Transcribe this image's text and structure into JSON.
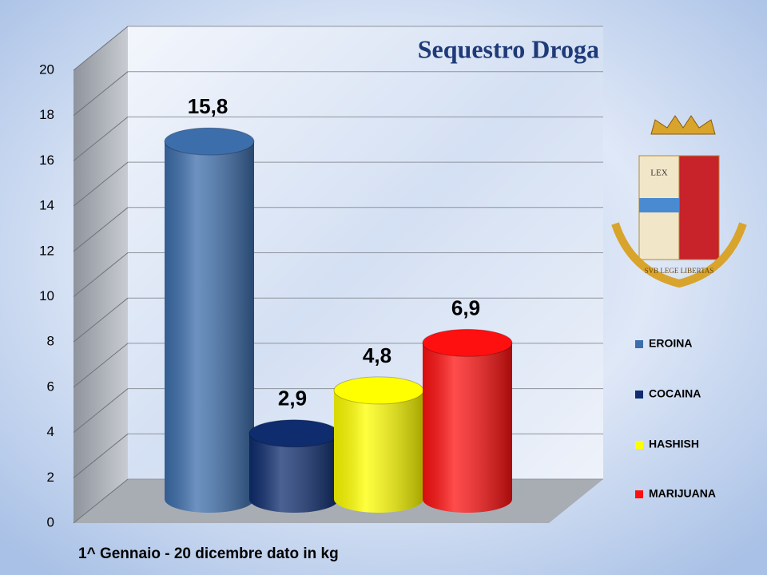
{
  "chart_data": {
    "type": "bar",
    "title": "Sequestro Droga",
    "subtitle": "1^ Gennaio  - 20 dicembre dato in kg",
    "categories": [
      "EROINA",
      "COCAINA",
      "HASHISH",
      "MARIJUANA"
    ],
    "values": [
      15.8,
      2.9,
      4.8,
      6.9
    ],
    "value_labels": [
      "15,8",
      "2,9",
      "4,8",
      "6,9"
    ],
    "colors": [
      "#3d6eac",
      "#0e2c6e",
      "#ffff00",
      "#ff1010"
    ],
    "ylim": [
      0,
      20
    ],
    "yticks": [
      0,
      2,
      4,
      6,
      8,
      10,
      12,
      14,
      16,
      18,
      20
    ],
    "grid": true,
    "legend": "right"
  },
  "emblem": {
    "lex": "LEX",
    "motto": "SVB LEGE LIBERTAS"
  }
}
